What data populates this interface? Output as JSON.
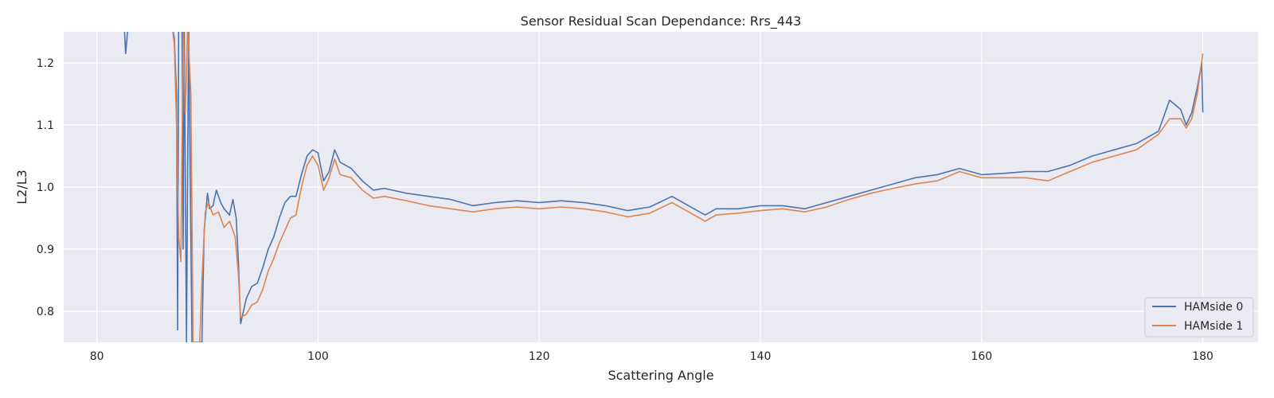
{
  "chart_data": {
    "type": "line",
    "title": "Sensor Residual Scan Dependance: Rrs_443",
    "xlabel": "Scattering Angle",
    "ylabel": "L2/L3",
    "xlim": [
      77,
      185
    ],
    "ylim": [
      0.75,
      1.25
    ],
    "xticks": [
      80,
      100,
      120,
      140,
      160,
      180
    ],
    "yticks": [
      0.8,
      0.9,
      1.0,
      1.1,
      1.2
    ],
    "xtick_labels": [
      "80",
      "100",
      "120",
      "140",
      "160",
      "180"
    ],
    "ytick_labels": [
      "0.8",
      "0.9",
      "1.0",
      "1.1",
      "1.2"
    ],
    "grid": true,
    "legend_position": "lower-right",
    "series": [
      {
        "name": "HAMside 0",
        "color": "#4c72b0",
        "points": [
          [
            82.5,
            1.25
          ],
          [
            82.6,
            1.215
          ],
          [
            82.7,
            1.235
          ],
          [
            82.8,
            1.26
          ],
          [
            86.8,
            1.26
          ],
          [
            87.0,
            1.24
          ],
          [
            87.2,
            1.15
          ],
          [
            87.3,
            0.77
          ],
          [
            87.4,
            1.26
          ],
          [
            87.7,
            1.26
          ],
          [
            87.8,
            0.9
          ],
          [
            87.9,
            1.26
          ],
          [
            88.1,
            0.75
          ],
          [
            88.3,
            1.26
          ],
          [
            88.6,
            0.75
          ],
          [
            89.5,
            0.75
          ],
          [
            89.7,
            0.93
          ],
          [
            90.0,
            0.99
          ],
          [
            90.2,
            0.965
          ],
          [
            90.5,
            0.97
          ],
          [
            90.8,
            0.995
          ],
          [
            91.2,
            0.975
          ],
          [
            91.5,
            0.965
          ],
          [
            92.0,
            0.955
          ],
          [
            92.3,
            0.98
          ],
          [
            92.6,
            0.95
          ],
          [
            92.8,
            0.88
          ],
          [
            93.0,
            0.78
          ],
          [
            93.5,
            0.82
          ],
          [
            94.0,
            0.84
          ],
          [
            94.5,
            0.845
          ],
          [
            95.0,
            0.87
          ],
          [
            95.5,
            0.9
          ],
          [
            96.0,
            0.92
          ],
          [
            96.5,
            0.95
          ],
          [
            97.0,
            0.975
          ],
          [
            97.5,
            0.985
          ],
          [
            98.0,
            0.985
          ],
          [
            98.5,
            1.02
          ],
          [
            99.0,
            1.05
          ],
          [
            99.5,
            1.06
          ],
          [
            100.0,
            1.055
          ],
          [
            100.5,
            1.01
          ],
          [
            101.0,
            1.025
          ],
          [
            101.5,
            1.06
          ],
          [
            102.0,
            1.04
          ],
          [
            103.0,
            1.03
          ],
          [
            104.0,
            1.01
          ],
          [
            105.0,
            0.995
          ],
          [
            106.0,
            0.998
          ],
          [
            108.0,
            0.99
          ],
          [
            110.0,
            0.985
          ],
          [
            112.0,
            0.98
          ],
          [
            114.0,
            0.97
          ],
          [
            116.0,
            0.975
          ],
          [
            118.0,
            0.978
          ],
          [
            120.0,
            0.975
          ],
          [
            122.0,
            0.978
          ],
          [
            124.0,
            0.975
          ],
          [
            126.0,
            0.97
          ],
          [
            128.0,
            0.962
          ],
          [
            130.0,
            0.968
          ],
          [
            132.0,
            0.985
          ],
          [
            134.0,
            0.965
          ],
          [
            135.0,
            0.955
          ],
          [
            136.0,
            0.965
          ],
          [
            138.0,
            0.965
          ],
          [
            140.0,
            0.97
          ],
          [
            142.0,
            0.97
          ],
          [
            144.0,
            0.965
          ],
          [
            146.0,
            0.975
          ],
          [
            148.0,
            0.985
          ],
          [
            150.0,
            0.995
          ],
          [
            152.0,
            1.005
          ],
          [
            154.0,
            1.015
          ],
          [
            156.0,
            1.02
          ],
          [
            158.0,
            1.03
          ],
          [
            160.0,
            1.02
          ],
          [
            162.0,
            1.022
          ],
          [
            164.0,
            1.025
          ],
          [
            166.0,
            1.025
          ],
          [
            168.0,
            1.035
          ],
          [
            170.0,
            1.05
          ],
          [
            172.0,
            1.06
          ],
          [
            174.0,
            1.07
          ],
          [
            176.0,
            1.09
          ],
          [
            177.0,
            1.14
          ],
          [
            178.0,
            1.125
          ],
          [
            178.5,
            1.1
          ],
          [
            179.0,
            1.12
          ],
          [
            179.5,
            1.16
          ],
          [
            179.9,
            1.2
          ],
          [
            180.0,
            1.12
          ]
        ]
      },
      {
        "name": "HAMside 1",
        "color": "#dd8452",
        "points": [
          [
            86.8,
            1.26
          ],
          [
            87.0,
            1.23
          ],
          [
            87.2,
            1.1
          ],
          [
            87.4,
            0.92
          ],
          [
            87.6,
            0.88
          ],
          [
            87.8,
            1.26
          ],
          [
            88.0,
            1.12
          ],
          [
            88.2,
            1.26
          ],
          [
            88.5,
            1.15
          ],
          [
            88.7,
            0.75
          ],
          [
            89.3,
            0.75
          ],
          [
            89.5,
            0.85
          ],
          [
            89.8,
            0.96
          ],
          [
            90.1,
            0.975
          ],
          [
            90.5,
            0.955
          ],
          [
            91.0,
            0.96
          ],
          [
            91.5,
            0.935
          ],
          [
            92.0,
            0.945
          ],
          [
            92.5,
            0.92
          ],
          [
            92.8,
            0.86
          ],
          [
            93.0,
            0.79
          ],
          [
            93.5,
            0.795
          ],
          [
            94.0,
            0.81
          ],
          [
            94.5,
            0.815
          ],
          [
            95.0,
            0.835
          ],
          [
            95.5,
            0.865
          ],
          [
            96.0,
            0.885
          ],
          [
            96.5,
            0.91
          ],
          [
            97.0,
            0.93
          ],
          [
            97.5,
            0.95
          ],
          [
            98.0,
            0.955
          ],
          [
            98.5,
            1.0
          ],
          [
            99.0,
            1.035
          ],
          [
            99.5,
            1.05
          ],
          [
            100.0,
            1.035
          ],
          [
            100.5,
            0.995
          ],
          [
            101.0,
            1.015
          ],
          [
            101.5,
            1.045
          ],
          [
            102.0,
            1.02
          ],
          [
            103.0,
            1.015
          ],
          [
            104.0,
            0.995
          ],
          [
            105.0,
            0.982
          ],
          [
            106.0,
            0.985
          ],
          [
            108.0,
            0.978
          ],
          [
            110.0,
            0.97
          ],
          [
            112.0,
            0.965
          ],
          [
            114.0,
            0.96
          ],
          [
            116.0,
            0.965
          ],
          [
            118.0,
            0.968
          ],
          [
            120.0,
            0.965
          ],
          [
            122.0,
            0.968
          ],
          [
            124.0,
            0.965
          ],
          [
            126.0,
            0.96
          ],
          [
            128.0,
            0.952
          ],
          [
            130.0,
            0.958
          ],
          [
            132.0,
            0.975
          ],
          [
            134.0,
            0.955
          ],
          [
            135.0,
            0.945
          ],
          [
            136.0,
            0.955
          ],
          [
            138.0,
            0.958
          ],
          [
            140.0,
            0.962
          ],
          [
            142.0,
            0.965
          ],
          [
            144.0,
            0.96
          ],
          [
            146.0,
            0.968
          ],
          [
            148.0,
            0.98
          ],
          [
            150.0,
            0.99
          ],
          [
            152.0,
            0.998
          ],
          [
            154.0,
            1.005
          ],
          [
            156.0,
            1.01
          ],
          [
            158.0,
            1.025
          ],
          [
            160.0,
            1.015
          ],
          [
            162.0,
            1.015
          ],
          [
            164.0,
            1.015
          ],
          [
            166.0,
            1.01
          ],
          [
            168.0,
            1.025
          ],
          [
            170.0,
            1.04
          ],
          [
            172.0,
            1.05
          ],
          [
            174.0,
            1.06
          ],
          [
            176.0,
            1.085
          ],
          [
            177.0,
            1.11
          ],
          [
            178.0,
            1.11
          ],
          [
            178.5,
            1.095
          ],
          [
            179.0,
            1.11
          ],
          [
            179.5,
            1.15
          ],
          [
            180.0,
            1.215
          ]
        ]
      }
    ]
  }
}
